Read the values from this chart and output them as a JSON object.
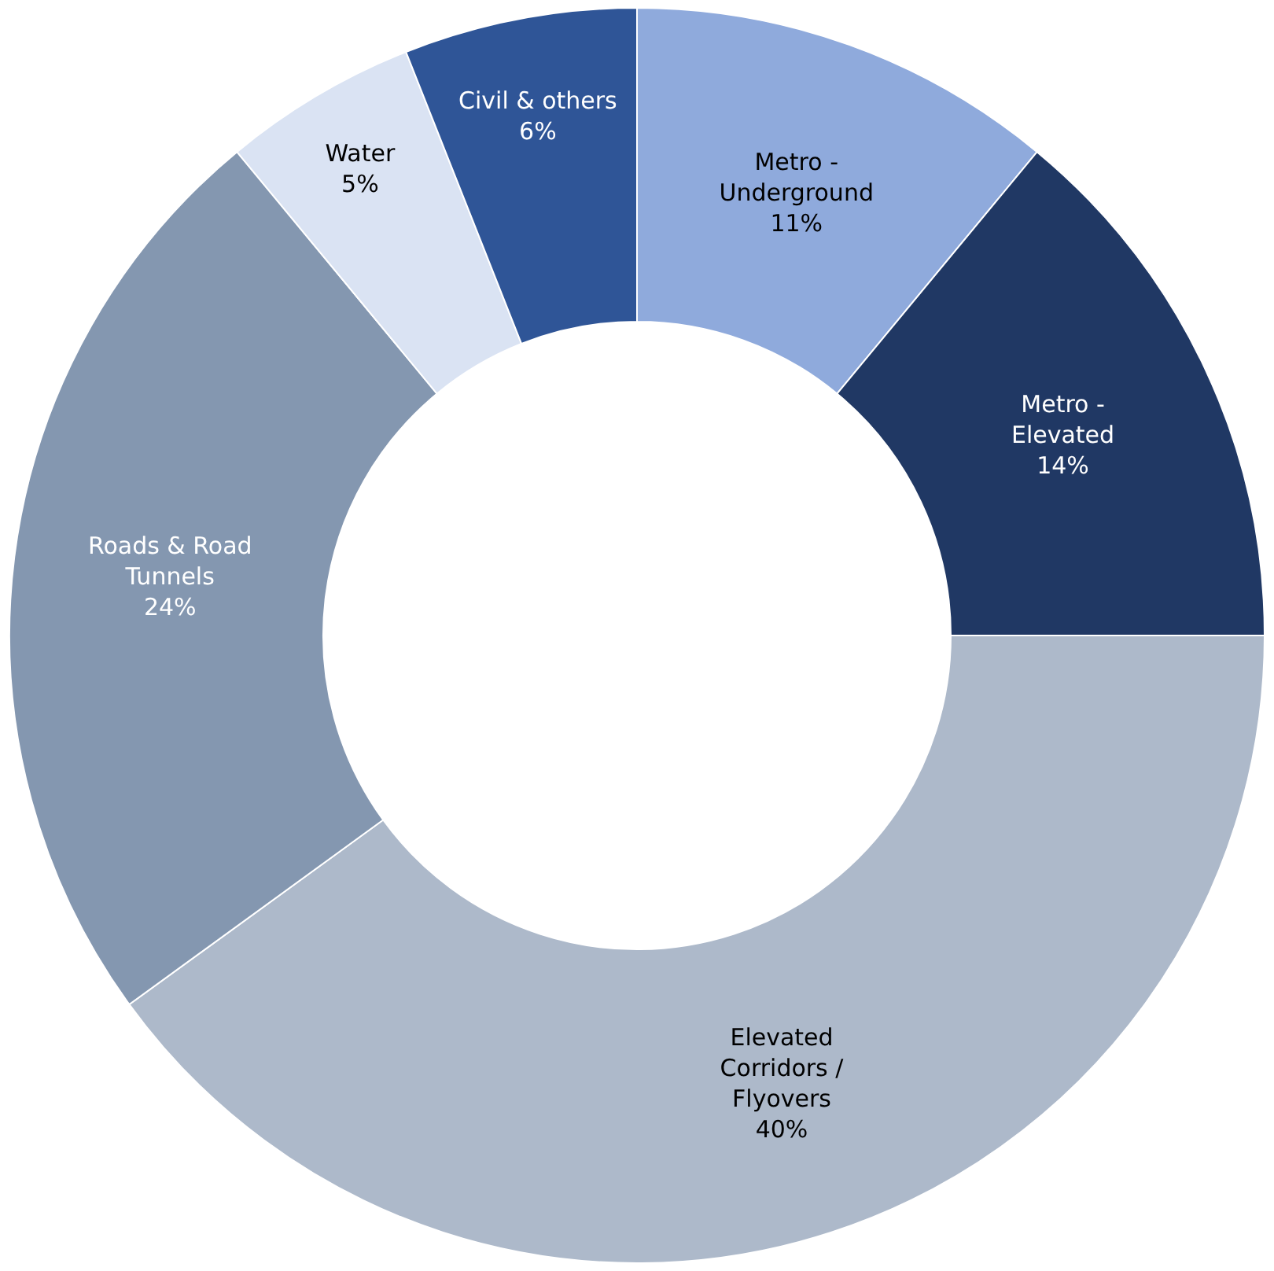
{
  "chart_data": {
    "type": "donut",
    "categories": [
      "Metro - Underground",
      "Metro - Elevated",
      "Elevated Corridors / Flyovers",
      "Roads & Road Tunnels",
      "Water",
      "Civil & others"
    ],
    "values": [
      11,
      14,
      40,
      24,
      5,
      6
    ],
    "value_labels": [
      "11%",
      "14%",
      "40%",
      "24%",
      "5%",
      "6%"
    ],
    "colors": [
      "#8faadc",
      "#203864",
      "#adb9ca",
      "#8497b0",
      "#dae3f3",
      "#2f5597"
    ]
  }
}
